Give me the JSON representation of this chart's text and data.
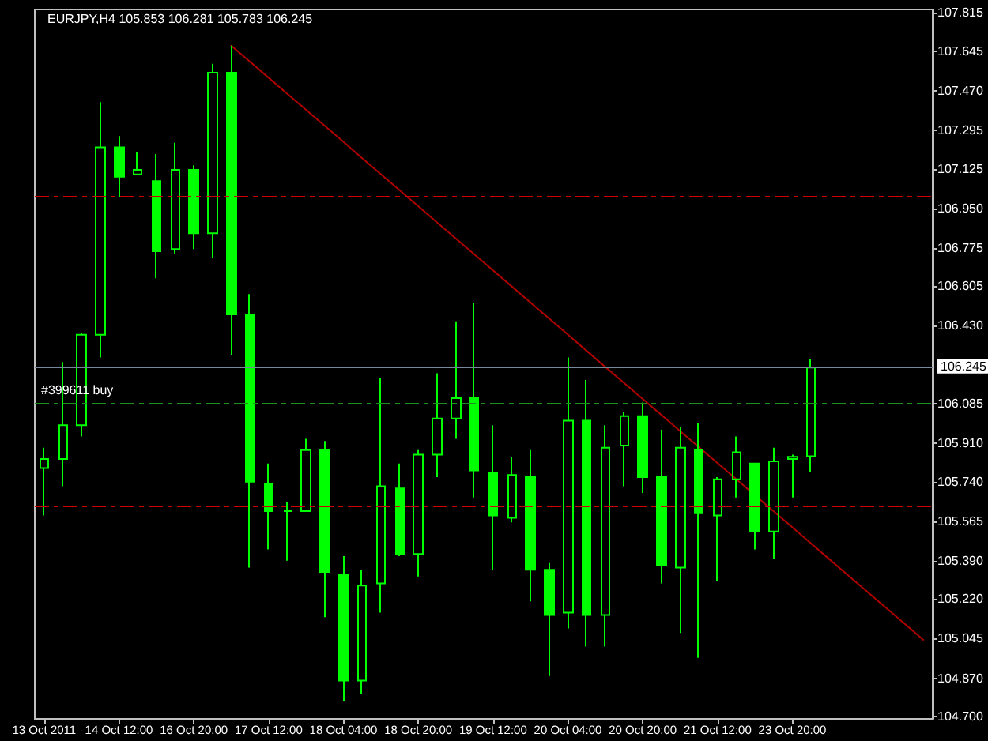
{
  "chart_data": {
    "type": "candlestick",
    "title": "EURJPY,H4 105.853 106.281 105.783 106.245",
    "categories": [
      "13 Oct 2011",
      null,
      null,
      null,
      "14 Oct 12:00",
      null,
      null,
      null,
      "16 Oct 20:00",
      null,
      null,
      null,
      "17 Oct 12:00",
      null,
      null,
      null,
      "18 Oct 04:00",
      null,
      null,
      null,
      "18 Oct 20:00",
      null,
      null,
      null,
      "19 Oct 12:00",
      null,
      null,
      null,
      "20 Oct 04:00",
      null,
      null,
      null,
      "20 Oct 20:00",
      null,
      null,
      null,
      "21 Oct 12:00",
      null,
      null,
      null,
      "23 Oct 20:00",
      null,
      null,
      null,
      null,
      null,
      null,
      null
    ],
    "series": [
      {
        "color": "#00ff00",
        "ohlc": [
          [
            105.8,
            105.89,
            105.59,
            105.84
          ],
          [
            105.84,
            106.27,
            105.72,
            105.99
          ],
          [
            105.99,
            106.4,
            105.94,
            106.39
          ],
          [
            106.39,
            107.42,
            106.29,
            107.22
          ],
          [
            107.22,
            107.27,
            107.0,
            107.09
          ],
          [
            107.1,
            107.2,
            107.1,
            107.12
          ],
          [
            107.07,
            107.19,
            106.64,
            106.76
          ],
          [
            106.77,
            107.24,
            106.75,
            107.12
          ],
          [
            107.12,
            107.14,
            106.77,
            106.84
          ],
          [
            106.84,
            107.59,
            106.73,
            107.55
          ],
          [
            107.55,
            107.67,
            106.3,
            106.48
          ],
          [
            106.48,
            106.57,
            105.36,
            105.74
          ],
          [
            105.73,
            105.82,
            105.44,
            105.61
          ],
          [
            105.61,
            105.65,
            105.39,
            105.61
          ],
          [
            105.61,
            105.93,
            105.61,
            105.88
          ],
          [
            105.88,
            105.92,
            105.14,
            105.34
          ],
          [
            105.33,
            105.41,
            104.77,
            104.86
          ],
          [
            104.86,
            105.35,
            104.8,
            105.28
          ],
          [
            105.29,
            106.2,
            105.16,
            105.72
          ],
          [
            105.71,
            105.82,
            105.41,
            105.42
          ],
          [
            105.42,
            105.88,
            105.32,
            105.86
          ],
          [
            105.86,
            106.22,
            105.76,
            106.02
          ],
          [
            106.02,
            106.45,
            105.93,
            106.11
          ],
          [
            106.11,
            106.53,
            105.67,
            105.79
          ],
          [
            105.78,
            105.99,
            105.35,
            105.59
          ],
          [
            105.58,
            105.85,
            105.56,
            105.77
          ],
          [
            105.76,
            105.88,
            105.21,
            105.35
          ],
          [
            105.35,
            105.38,
            104.88,
            105.15
          ],
          [
            105.16,
            106.29,
            105.09,
            106.01
          ],
          [
            106.01,
            106.19,
            105.01,
            105.15
          ],
          [
            105.15,
            105.99,
            105.01,
            105.89
          ],
          [
            105.9,
            106.05,
            105.72,
            106.03
          ],
          [
            106.03,
            106.09,
            105.69,
            105.76
          ],
          [
            105.76,
            105.97,
            105.29,
            105.37
          ],
          [
            105.36,
            105.98,
            105.07,
            105.89
          ],
          [
            105.88,
            106.0,
            104.96,
            105.6
          ],
          [
            105.59,
            105.76,
            105.3,
            105.75
          ],
          [
            105.75,
            105.94,
            105.67,
            105.87
          ],
          [
            105.82,
            105.82,
            105.44,
            105.52
          ],
          [
            105.52,
            105.89,
            105.4,
            105.83
          ],
          [
            105.84,
            105.86,
            105.67,
            105.85
          ],
          [
            105.853,
            106.281,
            105.783,
            106.245
          ],
          null,
          null,
          null,
          null,
          null,
          null
        ]
      },
      {
        "type": "line",
        "color": "#b00000",
        "values": [
          null,
          null,
          null,
          null,
          null,
          null,
          null,
          null,
          null,
          null,
          107.67,
          107.599,
          107.528,
          107.457,
          107.386,
          107.315,
          107.244,
          107.172,
          107.101,
          107.03,
          106.959,
          106.888,
          106.817,
          106.746,
          106.675,
          106.604,
          106.533,
          106.462,
          106.391,
          106.319,
          106.248,
          106.177,
          106.106,
          106.035,
          105.964,
          105.893,
          105.822,
          105.751,
          105.68,
          105.609,
          105.538,
          105.466,
          105.395,
          105.324,
          105.253,
          105.182,
          105.111,
          105.04
        ]
      }
    ],
    "ylim": [
      104.69,
      107.83
    ],
    "yticks": [
      {
        "value": 104.7,
        "label": "104.700"
      },
      {
        "value": 104.87,
        "label": "104.870"
      },
      105.045,
      {
        "value": 105.22,
        "label": "105.220"
      },
      {
        "value": 105.39,
        "label": "105.390"
      },
      105.565,
      {
        "value": 105.74,
        "label": "105.740"
      },
      {
        "value": 105.91,
        "label": "105.910"
      },
      106.085,
      {
        "value": 106.43,
        "label": "106.430"
      },
      106.605,
      106.775,
      {
        "value": 106.95,
        "label": "106.950"
      },
      107.125,
      107.295,
      {
        "value": 107.47,
        "label": "107.470"
      },
      107.645,
      107.815
    ],
    "ref_lines": [
      {
        "axis": "y",
        "value": 107.0,
        "color": "#cc0000",
        "line_style": "dashed"
      },
      {
        "axis": "y",
        "value": 105.63,
        "color": "#cc0000",
        "line_style": "dashed"
      },
      {
        "axis": "y",
        "value": 106.09,
        "label": "#399611 buy",
        "color": "#1f8f1f",
        "line_style": "dashed"
      },
      {
        "axis": "y",
        "value": 106.245,
        "label": "106.245",
        "color": "#778899",
        "line_style": "solid"
      }
    ]
  }
}
